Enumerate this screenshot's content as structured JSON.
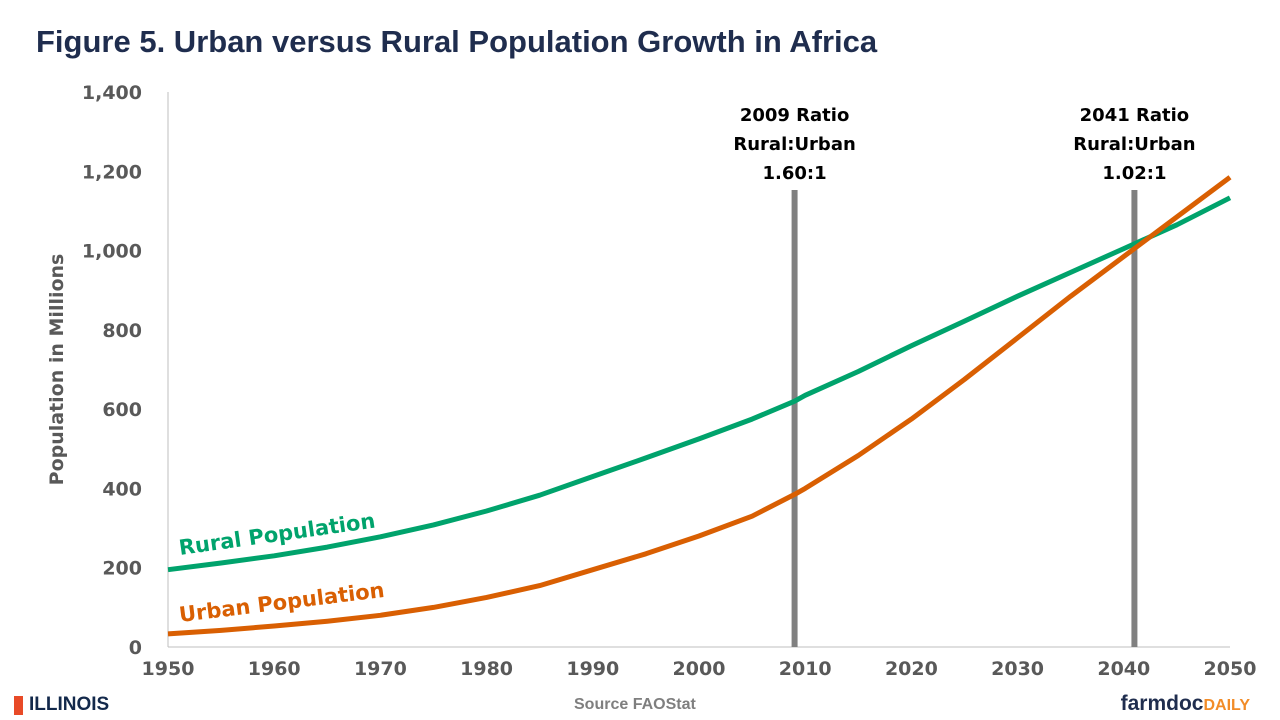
{
  "chart_data": {
    "type": "line",
    "title": "Figure 5. Urban versus Rural Population Growth in Africa",
    "xlabel": "",
    "ylabel": "Population in Millions",
    "xlim": [
      1950,
      2050
    ],
    "ylim": [
      0,
      1400
    ],
    "xticks": [
      "1950",
      "1960",
      "1970",
      "1980",
      "1990",
      "2000",
      "2010",
      "2020",
      "2030",
      "2040",
      "2050"
    ],
    "yticks": [
      "0",
      "200",
      "400",
      "600",
      "800",
      "1,000",
      "1,200",
      "1,400"
    ],
    "grid": false,
    "x": [
      1950,
      1955,
      1960,
      1965,
      1970,
      1975,
      1980,
      1985,
      1990,
      1995,
      2000,
      2005,
      2009,
      2010,
      2015,
      2020,
      2025,
      2030,
      2035,
      2040,
      2045,
      2050
    ],
    "series": [
      {
        "name": "Rural Population",
        "color": "#00a36c",
        "values": [
          195,
          212,
          230,
          252,
          278,
          308,
          343,
          383,
          430,
          477,
          525,
          575,
          620,
          635,
          695,
          760,
          822,
          885,
          945,
          1005,
          1065,
          1133
        ]
      },
      {
        "name": "Urban Population",
        "color": "#d95f02",
        "values": [
          33,
          42,
          53,
          65,
          80,
          100,
          125,
          155,
          195,
          235,
          280,
          330,
          385,
          400,
          483,
          575,
          675,
          780,
          885,
          985,
          1085,
          1185
        ]
      }
    ],
    "annotations": [
      {
        "x": 2009,
        "lines": [
          "2009 Ratio",
          "Rural:Urban",
          "1.60:1"
        ]
      },
      {
        "x": 2041,
        "lines": [
          "2041 Ratio",
          "Rural:Urban",
          "1.02:1"
        ]
      }
    ],
    "source": "Source FAOStat"
  },
  "footer": {
    "left_logo": "ILLINOIS",
    "right_logo_a": "farmdoc",
    "right_logo_b": "DAILY"
  }
}
